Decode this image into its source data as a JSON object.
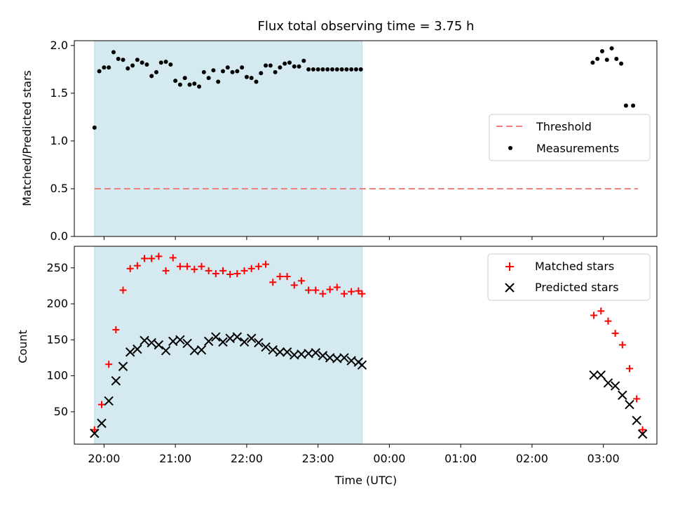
{
  "chart_data": [
    {
      "type": "scatter",
      "title": "Flux total observing time = 3.75 h",
      "ylabel": "Matched/Predicted stars",
      "xlabel": "",
      "ylim": [
        0,
        2.05
      ],
      "yticks": [
        "0.0",
        "0.5",
        "1.0",
        "1.5",
        "2.0"
      ],
      "ytick_values": [
        0,
        0.5,
        1.0,
        1.5,
        2.0
      ],
      "shaded_span": [
        "19:52",
        "23:37"
      ],
      "shaded_color": "#d4eaf0",
      "grid": false,
      "legend_position": "center-right",
      "threshold": {
        "name": "Threshold",
        "y": 0.5,
        "x_start": "19:52",
        "x_end": "03:29",
        "color": "#f08080",
        "style": "dashed"
      },
      "series": [
        {
          "name": "Measurements",
          "color": "#000000",
          "marker": "dot",
          "x": [
            "19:52",
            "19:56",
            "20:00",
            "20:04",
            "20:08",
            "20:12",
            "20:16",
            "20:20",
            "20:24",
            "20:28",
            "20:32",
            "20:36",
            "20:40",
            "20:44",
            "20:48",
            "20:52",
            "20:56",
            "21:00",
            "21:04",
            "21:08",
            "21:12",
            "21:16",
            "21:20",
            "21:24",
            "21:28",
            "21:32",
            "21:36",
            "21:40",
            "21:44",
            "21:48",
            "21:52",
            "21:56",
            "22:00",
            "22:04",
            "22:08",
            "22:12",
            "22:16",
            "22:20",
            "22:24",
            "22:28",
            "22:32",
            "22:36",
            "22:40",
            "22:44",
            "22:48",
            "22:52",
            "22:56",
            "23:00",
            "23:04",
            "23:08",
            "23:12",
            "23:16",
            "23:20",
            "23:24",
            "23:28",
            "23:32",
            "23:36",
            "02:51",
            "02:55",
            "02:59",
            "03:03",
            "03:07",
            "03:11",
            "03:15",
            "03:19",
            "03:25"
          ],
          "y": [
            1.14,
            1.73,
            1.77,
            1.77,
            1.93,
            1.86,
            1.85,
            1.76,
            1.79,
            1.85,
            1.82,
            1.8,
            1.68,
            1.72,
            1.82,
            1.83,
            1.8,
            1.63,
            1.59,
            1.66,
            1.59,
            1.6,
            1.57,
            1.72,
            1.66,
            1.74,
            1.62,
            1.73,
            1.77,
            1.72,
            1.73,
            1.77,
            1.67,
            1.66,
            1.62,
            1.71,
            1.79,
            1.79,
            1.72,
            1.77,
            1.81,
            1.82,
            1.78,
            1.78,
            1.84,
            1.75,
            1.75,
            1.75,
            1.75,
            1.75,
            1.75,
            1.75,
            1.75,
            1.75,
            1.75,
            1.75,
            1.75,
            1.82,
            1.86,
            1.94,
            1.85,
            1.97,
            1.86,
            1.81,
            1.37,
            1.37
          ]
        }
      ]
    },
    {
      "type": "scatter",
      "title": "",
      "ylabel": "Count",
      "xlabel": "Time (UTC)",
      "ylim": [
        5,
        280
      ],
      "yticks": [
        "50",
        "100",
        "150",
        "200",
        "250"
      ],
      "ytick_values": [
        50,
        100,
        150,
        200,
        250
      ],
      "xticks": [
        "20:00",
        "21:00",
        "22:00",
        "23:00",
        "00:00",
        "01:00",
        "02:00",
        "03:00"
      ],
      "xlim": [
        "19:35",
        "03:45"
      ],
      "shaded_span": [
        "19:52",
        "23:37"
      ],
      "shaded_color": "#d4eaf0",
      "grid": false,
      "legend_position": "top-right",
      "series": [
        {
          "name": "Matched stars",
          "color": "#ff0000",
          "marker": "plus",
          "x": [
            "19:52",
            "19:58",
            "20:04",
            "20:10",
            "20:16",
            "20:22",
            "20:28",
            "20:34",
            "20:40",
            "20:46",
            "20:52",
            "20:58",
            "21:04",
            "21:10",
            "21:16",
            "21:22",
            "21:28",
            "21:34",
            "21:40",
            "21:46",
            "21:52",
            "21:58",
            "22:04",
            "22:10",
            "22:16",
            "22:22",
            "22:28",
            "22:34",
            "22:40",
            "22:46",
            "22:52",
            "22:58",
            "23:04",
            "23:10",
            "23:16",
            "23:22",
            "23:28",
            "23:34",
            "23:37",
            "02:52",
            "02:58",
            "03:04",
            "03:10",
            "03:16",
            "03:22",
            "03:28",
            "03:33"
          ],
          "y": [
            25,
            60,
            116,
            164,
            219,
            249,
            253,
            263,
            263,
            266,
            246,
            264,
            252,
            252,
            248,
            252,
            246,
            242,
            246,
            241,
            242,
            246,
            249,
            252,
            255,
            230,
            238,
            238,
            226,
            232,
            219,
            219,
            214,
            220,
            223,
            214,
            217,
            218,
            214,
            184,
            190,
            176,
            159,
            143,
            110,
            68,
            25
          ]
        },
        {
          "name": "Predicted stars",
          "color": "#000000",
          "marker": "x",
          "x": [
            "19:52",
            "19:58",
            "20:04",
            "20:10",
            "20:16",
            "20:22",
            "20:28",
            "20:34",
            "20:40",
            "20:46",
            "20:52",
            "20:58",
            "21:04",
            "21:10",
            "21:16",
            "21:22",
            "21:28",
            "21:34",
            "21:40",
            "21:46",
            "21:52",
            "21:58",
            "22:04",
            "22:10",
            "22:16",
            "22:22",
            "22:28",
            "22:34",
            "22:40",
            "22:46",
            "22:52",
            "22:58",
            "23:04",
            "23:10",
            "23:16",
            "23:22",
            "23:28",
            "23:34",
            "23:37",
            "02:52",
            "02:58",
            "03:04",
            "03:10",
            "03:16",
            "03:22",
            "03:28",
            "03:33"
          ],
          "y": [
            20,
            34,
            65,
            93,
            113,
            133,
            137,
            149,
            146,
            143,
            135,
            148,
            150,
            145,
            135,
            136,
            148,
            154,
            147,
            152,
            154,
            147,
            152,
            146,
            140,
            136,
            133,
            133,
            129,
            130,
            131,
            132,
            128,
            125,
            124,
            125,
            121,
            119,
            115,
            101,
            101,
            90,
            86,
            73,
            60,
            38,
            19
          ]
        }
      ]
    }
  ]
}
